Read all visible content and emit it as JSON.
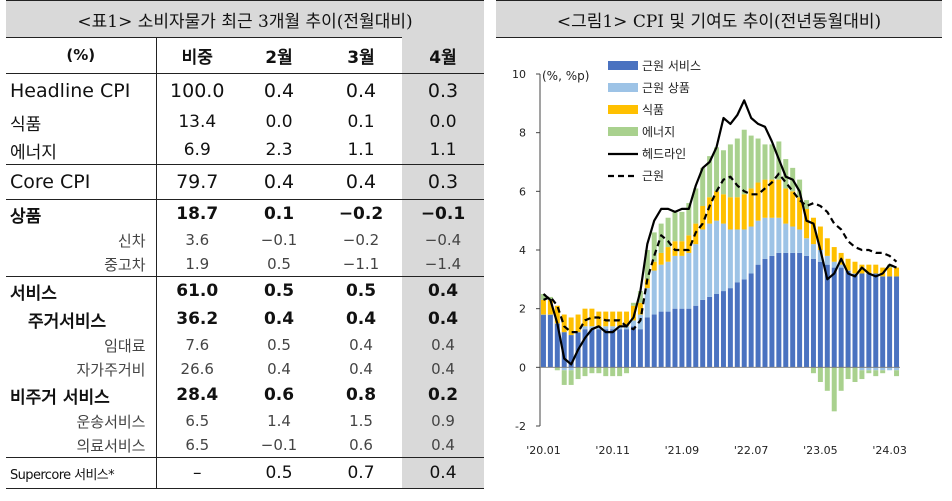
{
  "table": {
    "title": "<표1> 소비자물가 최근 3개월 추이(전월대비)",
    "header": [
      "(%)",
      "비중",
      "2월",
      "3월",
      "4월"
    ],
    "rows": [
      {
        "label": "Headline CPI",
        "weight": "100.0",
        "feb": "0.4",
        "mar": "0.4",
        "apr": "0.3"
      },
      {
        "label": "식품",
        "weight": "13.4",
        "feb": "0.0",
        "mar": "0.1",
        "apr": "0.0"
      },
      {
        "label": "에너지",
        "weight": "6.9",
        "feb": "2.3",
        "mar": "1.1",
        "apr": "1.1"
      },
      {
        "label": "Core CPI",
        "weight": "79.7",
        "feb": "0.4",
        "mar": "0.4",
        "apr": "0.3"
      },
      {
        "label": "상품",
        "weight": "18.7",
        "feb": "0.1",
        "mar": "−0.2",
        "apr": "−0.1"
      },
      {
        "label": "신차",
        "weight": "3.6",
        "feb": "−0.1",
        "mar": "−0.2",
        "apr": "−0.4"
      },
      {
        "label": "중고차",
        "weight": "1.9",
        "feb": "0.5",
        "mar": "−1.1",
        "apr": "−1.4"
      },
      {
        "label": "서비스",
        "weight": "61.0",
        "feb": "0.5",
        "mar": "0.5",
        "apr": "0.4"
      },
      {
        "label": "주거서비스",
        "weight": "36.2",
        "feb": "0.4",
        "mar": "0.4",
        "apr": "0.4"
      },
      {
        "label": "임대료",
        "weight": "7.6",
        "feb": "0.5",
        "mar": "0.4",
        "apr": "0.4"
      },
      {
        "label": "자가주거비",
        "weight": "26.6",
        "feb": "0.4",
        "mar": "0.4",
        "apr": "0.4"
      },
      {
        "label": "비주거 서비스",
        "weight": "28.4",
        "feb": "0.6",
        "mar": "0.8",
        "apr": "0.2"
      },
      {
        "label": "운송서비스",
        "weight": "6.5",
        "feb": "1.4",
        "mar": "1.5",
        "apr": "0.9"
      },
      {
        "label": "의료서비스",
        "weight": "6.5",
        "feb": "−0.1",
        "mar": "0.6",
        "apr": "0.4"
      },
      {
        "label": "Supercore 서비스*",
        "weight": "–",
        "feb": "0.5",
        "mar": "0.7",
        "apr": "0.4"
      }
    ]
  },
  "chart_data": {
    "type": "bar",
    "title": "<그림1>  CPI 및 기여도 추이(전년동월대비)",
    "unit_label": "(%, %p)",
    "ylim": [
      -2,
      10
    ],
    "yticks": [
      -2,
      0,
      2,
      4,
      6,
      8,
      10
    ],
    "x_tick_labels": [
      "'20.01",
      "'20.11",
      "'21.09",
      "'22.07",
      "'23.05",
      "'24.03"
    ],
    "x_tick_index": [
      0,
      10,
      20,
      30,
      40,
      50
    ],
    "legend_position": "top",
    "stacked": true,
    "series": [
      {
        "name": "근원 서비스",
        "color": "#4a72c0",
        "type": "bar",
        "values": [
          1.8,
          1.8,
          1.5,
          1.2,
          1.1,
          1.2,
          1.3,
          1.3,
          1.3,
          1.3,
          1.3,
          1.3,
          1.3,
          1.4,
          1.3,
          1.7,
          1.8,
          1.9,
          1.9,
          2.0,
          2.0,
          2.0,
          2.1,
          2.3,
          2.4,
          2.5,
          2.6,
          2.7,
          2.9,
          3.0,
          3.2,
          3.5,
          3.7,
          3.8,
          3.9,
          3.9,
          3.9,
          3.9,
          3.8,
          3.7,
          3.6,
          3.5,
          3.4,
          3.4,
          3.3,
          3.2,
          3.2,
          3.2,
          3.2,
          3.1,
          3.1,
          3.1
        ]
      },
      {
        "name": "근원 상품",
        "color": "#9dc3e6",
        "type": "bar",
        "values": [
          0.0,
          0.0,
          0.0,
          -0.1,
          -0.1,
          0.0,
          0.1,
          0.1,
          0.1,
          0.1,
          0.1,
          0.1,
          0.1,
          0.2,
          0.5,
          1.0,
          1.5,
          1.6,
          1.7,
          1.8,
          1.8,
          1.9,
          2.1,
          2.4,
          2.5,
          2.5,
          2.3,
          2.0,
          1.8,
          1.7,
          1.6,
          1.5,
          1.4,
          1.3,
          1.2,
          1.0,
          0.9,
          0.8,
          0.6,
          0.5,
          0.4,
          0.3,
          0.2,
          0.1,
          0.0,
          0.0,
          -0.1,
          -0.1,
          -0.1,
          -0.1,
          -0.1,
          -0.1
        ]
      },
      {
        "name": "식품",
        "color": "#ffc000",
        "type": "bar",
        "values": [
          0.5,
          0.5,
          0.6,
          0.6,
          0.6,
          0.6,
          0.6,
          0.6,
          0.5,
          0.5,
          0.5,
          0.5,
          0.5,
          0.5,
          0.4,
          0.3,
          0.3,
          0.4,
          0.5,
          0.5,
          0.5,
          0.6,
          0.7,
          0.8,
          0.9,
          1.0,
          1.0,
          1.1,
          1.1,
          1.2,
          1.3,
          1.3,
          1.3,
          1.3,
          1.3,
          1.2,
          1.2,
          1.1,
          1.0,
          0.9,
          0.8,
          0.6,
          0.5,
          0.4,
          0.4,
          0.4,
          0.3,
          0.3,
          0.3,
          0.3,
          0.3,
          0.3
        ]
      },
      {
        "name": "에너지",
        "color": "#a9d18e",
        "type": "bar",
        "values": [
          0.2,
          0.1,
          -0.1,
          -0.5,
          -0.5,
          -0.4,
          -0.3,
          -0.2,
          -0.2,
          -0.3,
          -0.3,
          -0.3,
          -0.2,
          0.1,
          0.4,
          1.0,
          1.0,
          1.0,
          1.0,
          1.0,
          1.0,
          1.1,
          1.2,
          1.3,
          1.4,
          1.5,
          1.5,
          1.8,
          2.0,
          2.2,
          1.8,
          1.5,
          1.2,
          1.2,
          1.3,
          1.0,
          0.8,
          0.6,
          0.3,
          -0.2,
          -0.5,
          -0.8,
          -1.5,
          -0.8,
          -0.4,
          -0.5,
          -0.3,
          -0.1,
          -0.2,
          -0.1,
          0.1,
          -0.2
        ]
      },
      {
        "name": "헤드라인",
        "color": "#000000",
        "type": "line",
        "dash": false,
        "values": [
          2.5,
          2.3,
          1.5,
          0.3,
          0.1,
          0.6,
          1.0,
          1.3,
          1.4,
          1.2,
          1.2,
          1.4,
          1.4,
          1.7,
          2.6,
          4.2,
          5.0,
          5.4,
          5.4,
          5.3,
          5.4,
          5.4,
          6.2,
          6.8,
          7.0,
          7.5,
          8.5,
          8.3,
          8.6,
          9.1,
          8.5,
          8.3,
          8.2,
          7.7,
          7.1,
          6.5,
          6.4,
          6.0,
          5.0,
          4.9,
          4.0,
          3.0,
          3.2,
          3.7,
          3.2,
          3.1,
          3.4,
          3.2,
          3.1,
          3.2,
          3.5,
          3.4
        ]
      },
      {
        "name": "근원",
        "color": "#000000",
        "type": "line",
        "dash": true,
        "values": [
          2.3,
          2.4,
          2.1,
          1.4,
          1.2,
          1.2,
          1.6,
          1.7,
          1.7,
          1.6,
          1.6,
          1.6,
          1.4,
          1.3,
          1.6,
          3.0,
          3.8,
          4.5,
          4.3,
          4.0,
          4.0,
          4.0,
          4.6,
          4.9,
          5.5,
          6.0,
          6.4,
          6.5,
          6.2,
          6.0,
          5.9,
          5.9,
          6.1,
          6.3,
          6.6,
          6.3,
          6.0,
          5.7,
          5.5,
          5.6,
          5.5,
          5.3,
          4.9,
          4.7,
          4.3,
          4.1,
          4.0,
          4.0,
          3.9,
          3.9,
          3.8,
          3.6
        ]
      }
    ]
  }
}
